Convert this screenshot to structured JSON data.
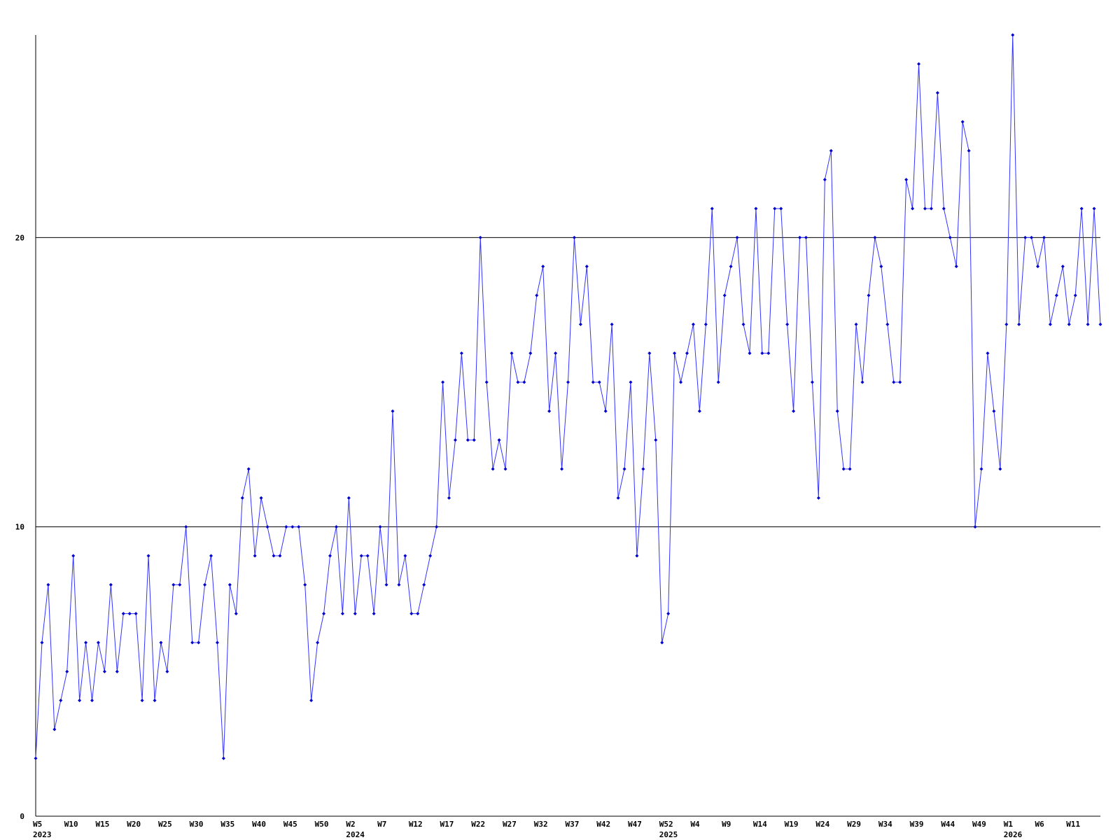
{
  "chart_data": {
    "type": "line",
    "categories": [
      "W5",
      null,
      null,
      null,
      null,
      "W10",
      null,
      null,
      null,
      null,
      "W15",
      null,
      null,
      null,
      null,
      "W20",
      null,
      null,
      null,
      null,
      "W25",
      null,
      null,
      null,
      null,
      "W30",
      null,
      null,
      null,
      null,
      "W35",
      null,
      null,
      null,
      null,
      "W40",
      null,
      null,
      null,
      null,
      "W45",
      null,
      null,
      null,
      null,
      "W50",
      null,
      null,
      null,
      null,
      "W2",
      null,
      null,
      null,
      null,
      "W7",
      null,
      null,
      null,
      null,
      "W12",
      null,
      null,
      null,
      null,
      "W17",
      null,
      null,
      null,
      null,
      "W22",
      null,
      null,
      null,
      null,
      "W27",
      null,
      null,
      null,
      null,
      "W32",
      null,
      null,
      null,
      null,
      "W37",
      null,
      null,
      null,
      null,
      "W42",
      null,
      null,
      null,
      null,
      "W47",
      null,
      null,
      null,
      null,
      "W52",
      null,
      null,
      null,
      null,
      "W4",
      null,
      null,
      null,
      null,
      "W9",
      null,
      null,
      null,
      null,
      "W14",
      null,
      null,
      null,
      null,
      "W19",
      null,
      null,
      null,
      null,
      "W24",
      null,
      null,
      null,
      null,
      "W29",
      null,
      null,
      null,
      null,
      "W34",
      null,
      null,
      null,
      null,
      "W39",
      null,
      null,
      null,
      null,
      "W44",
      null,
      null,
      null,
      null,
      "W49",
      null,
      null,
      null,
      null,
      "W1",
      null,
      null,
      null,
      null,
      "W6",
      null,
      null,
      null,
      null,
      "W11",
      null,
      null,
      null,
      null,
      null
    ],
    "year_labels": {
      "0": "2023",
      "50": "2024",
      "100": "2025",
      "155": "2026"
    },
    "series": [
      {
        "color": "#3333ff",
        "marker_color": "#0000cc",
        "values": [
          2,
          6,
          8,
          3,
          4,
          5,
          9,
          4,
          6,
          4,
          6,
          5,
          8,
          5,
          7,
          7,
          7,
          4,
          9,
          4,
          6,
          5,
          8,
          8,
          10,
          6,
          6,
          8,
          9,
          6,
          2,
          8,
          7,
          11,
          12,
          9,
          11,
          10,
          9,
          9,
          10,
          10,
          10,
          8,
          4,
          6,
          7,
          9,
          10,
          7,
          11,
          7,
          9,
          9,
          7,
          10,
          8,
          14,
          8,
          9,
          7,
          7,
          8,
          9,
          10,
          15,
          11,
          13,
          16,
          13,
          13,
          20,
          15,
          12,
          13,
          12,
          16,
          15,
          15,
          16,
          18,
          19,
          14,
          16,
          12,
          15,
          20,
          17,
          19,
          15,
          15,
          14,
          17,
          11,
          12,
          15,
          9,
          12,
          16,
          13,
          6,
          7,
          16,
          15,
          16,
          17,
          14,
          17,
          21,
          15,
          18,
          19,
          20,
          17,
          16,
          21,
          16,
          16,
          21,
          21,
          17,
          14,
          20,
          20,
          15,
          11,
          22,
          23,
          14,
          12,
          12,
          17,
          15,
          18,
          20,
          19,
          17,
          15,
          15,
          22,
          21,
          26,
          21,
          21,
          25,
          21,
          20,
          19,
          24,
          23,
          10,
          12,
          16,
          14,
          12,
          17,
          27,
          17,
          20,
          20,
          19,
          20,
          17,
          18,
          19,
          17,
          18,
          21,
          17,
          21,
          17
        ]
      }
    ],
    "ylim": [
      0,
      27
    ],
    "yticks": [
      0,
      10,
      20
    ],
    "grid": true
  }
}
